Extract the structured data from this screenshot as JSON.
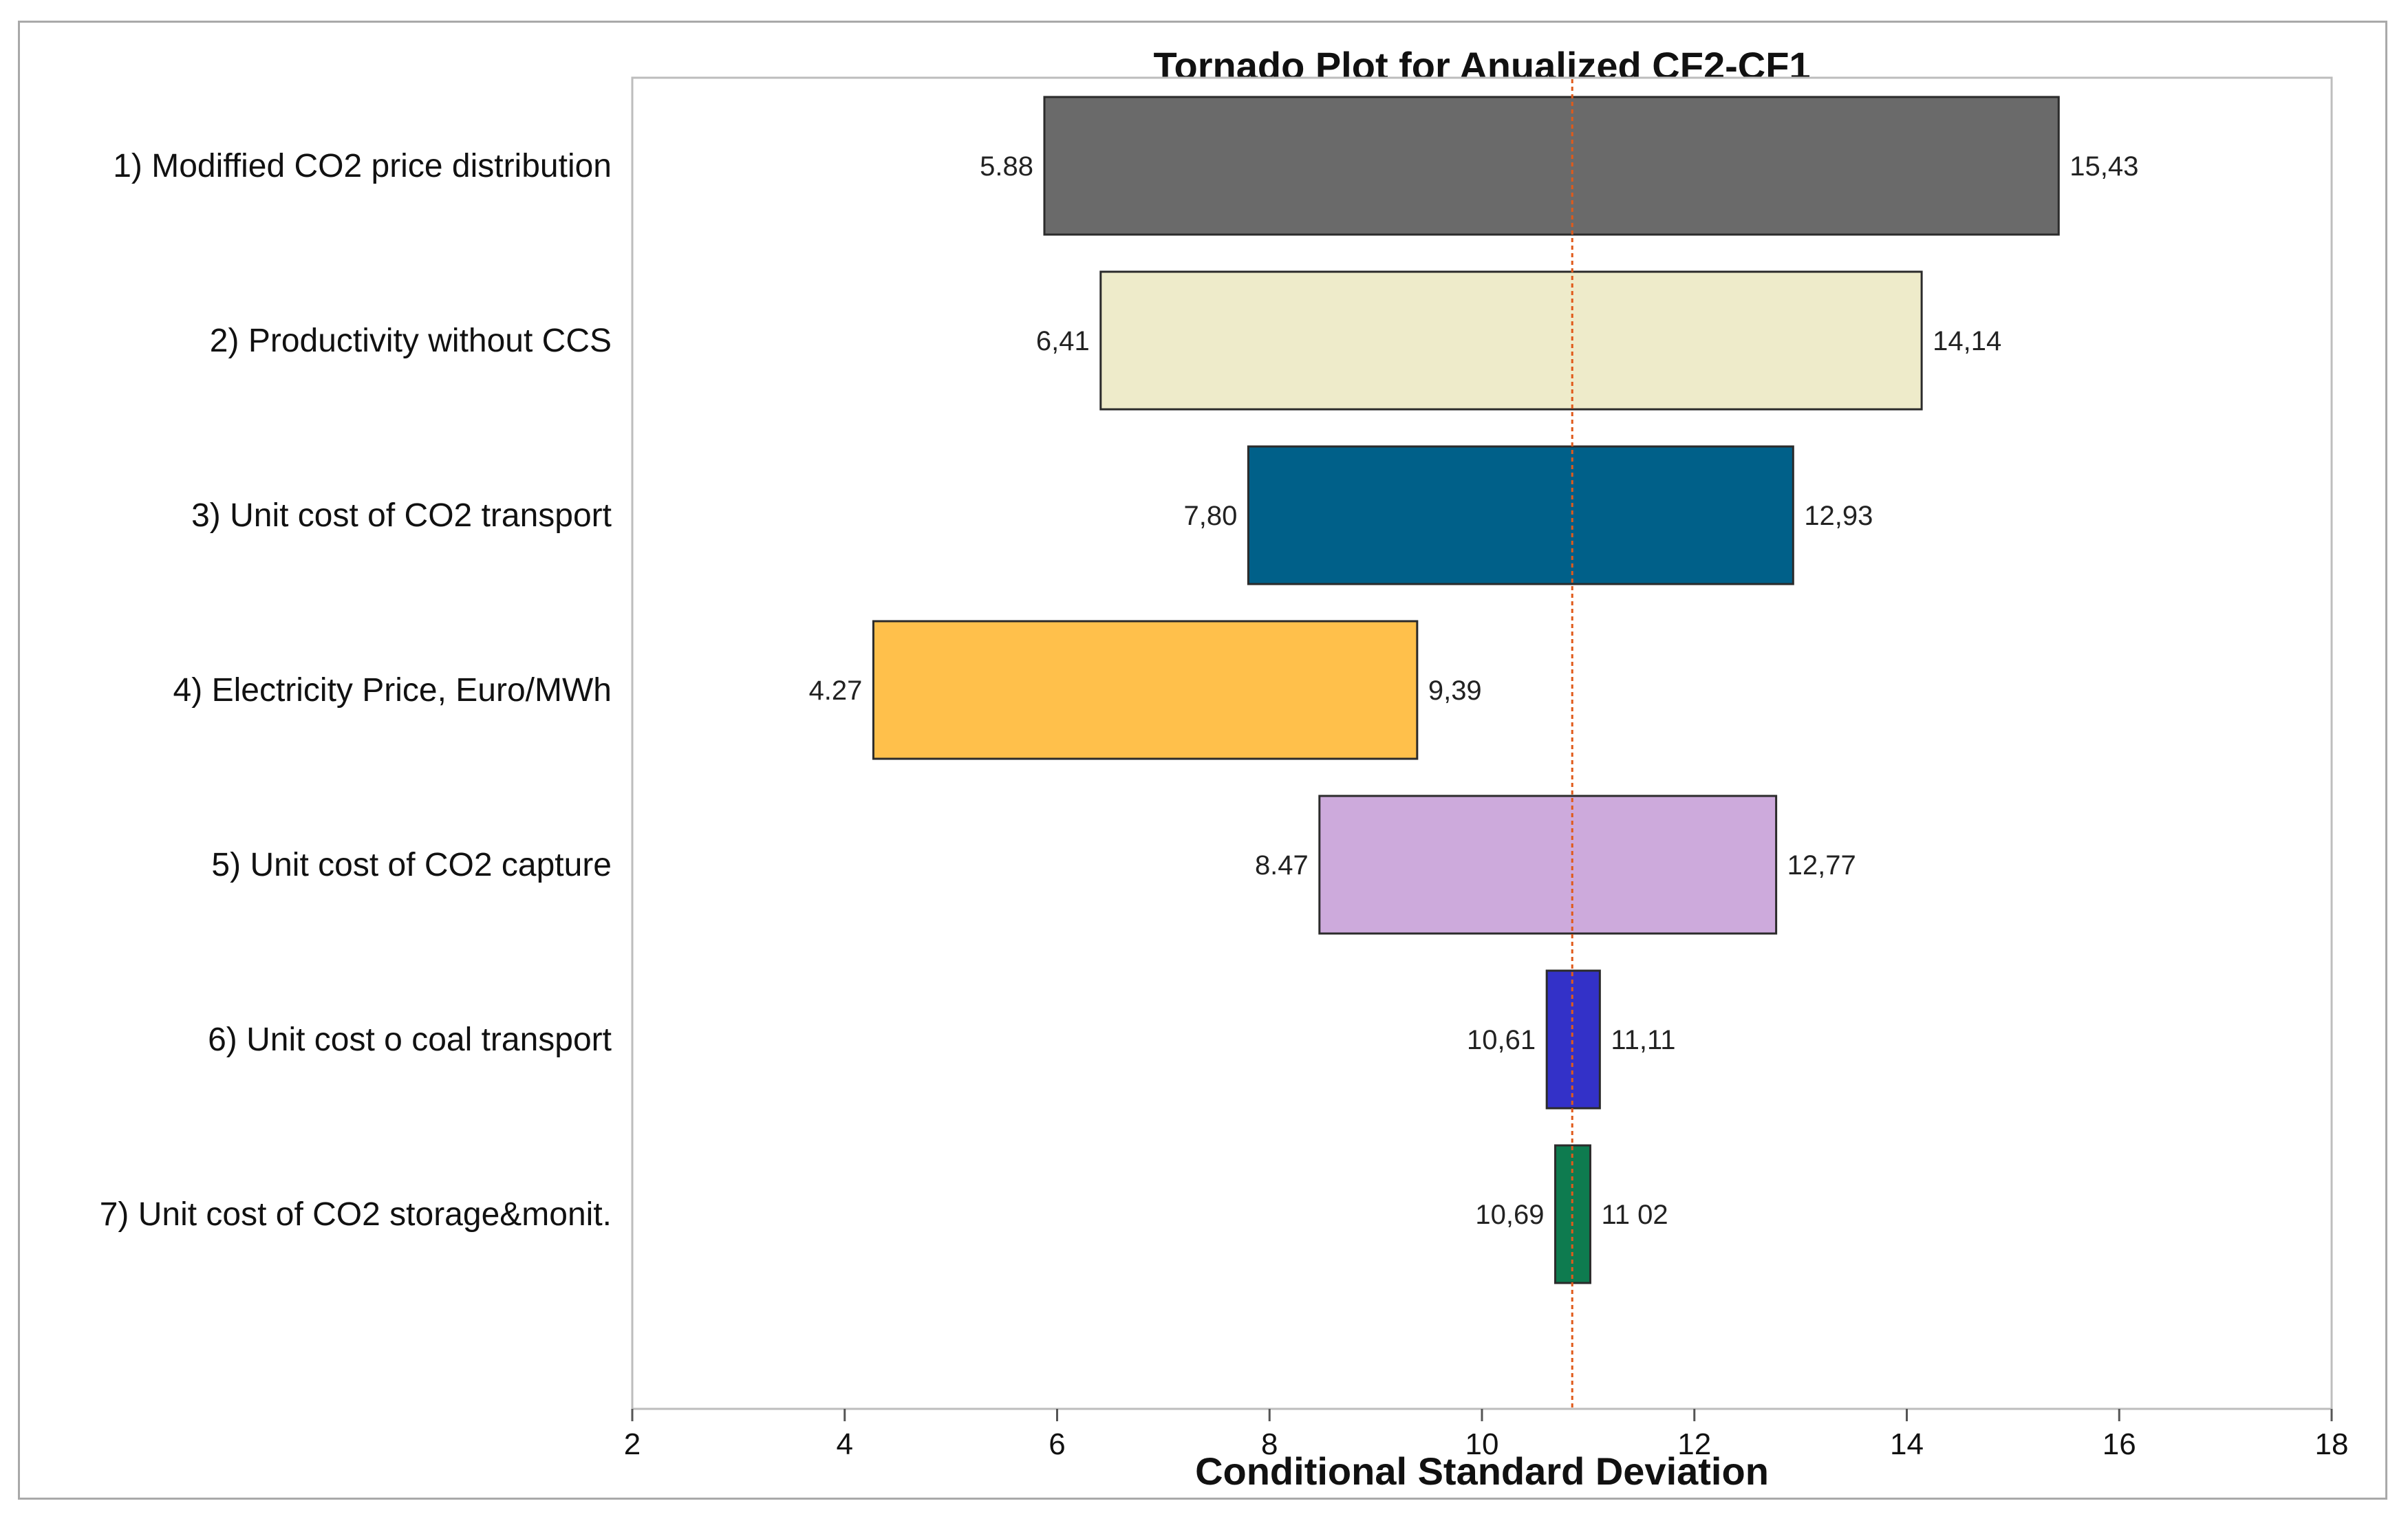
{
  "chart_data": {
    "type": "bar",
    "orientation": "horizontal-tornado",
    "title": "Tornado Plot for Anualized CF2-CF1",
    "xlabel": "Conditional Standard Deviation",
    "ylabel": "",
    "xlim": [
      2,
      18
    ],
    "xticks": [
      2,
      4,
      6,
      8,
      10,
      12,
      14,
      16,
      18
    ],
    "xtick_labels": [
      "2",
      "4",
      "6",
      "8",
      "10",
      "12",
      "14",
      "16",
      "18"
    ],
    "reference_line": {
      "x": 10.85,
      "color": "#e05a1a",
      "style": "dotted"
    },
    "grid": false,
    "categories": [
      "1) Modiffied CO2 price distribution",
      "2) Productivity without CCS",
      "3) Unit cost of CO2 transport",
      "4) Electricity Price, Euro/MWh",
      "5) Unit cost of CO2 capture",
      "6) Unit cost o coal transport",
      "7) Unit cost of CO2 storage&monit."
    ],
    "low": [
      5.88,
      6.41,
      7.8,
      4.27,
      8.47,
      10.61,
      10.69
    ],
    "high": [
      15.43,
      14.14,
      12.93,
      9.39,
      12.77,
      11.11,
      11.02
    ],
    "low_labels": [
      "5.88",
      "6,41",
      "7,80",
      "4.27",
      "8.47",
      "10,61",
      "10,69"
    ],
    "high_labels": [
      "15,43",
      "14,14",
      "12,93",
      "9,39",
      "12,77",
      "11,11",
      "11 02"
    ],
    "colors": [
      "#6a6a6a",
      "#eeebca",
      "#006089",
      "#ffc04b",
      "#cdaadc",
      "#3331c8",
      "#0e7b4f"
    ]
  }
}
